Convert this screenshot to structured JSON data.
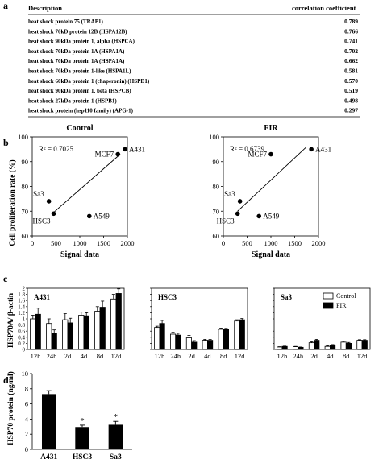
{
  "panel_labels": {
    "a": "a",
    "b": "b",
    "c": "c",
    "d": "d"
  },
  "table": {
    "header_description": "Description",
    "header_coefficient": "correlation coefficient",
    "rows": [
      {
        "desc": "heat shock protein 75 (TRAP1)",
        "value": "0.789"
      },
      {
        "desc": "heat shock 70kD protein 12B (HSPA12B)",
        "value": "0.766"
      },
      {
        "desc": "heat shock 90kDa protein 1, alpha (HSPCA)",
        "value": "0.741"
      },
      {
        "desc": "heat shock 70kDa protein 1A (HSPA1A)",
        "value": "0.702"
      },
      {
        "desc": "heat shock 70kDa protein 1A (HSPA1A)",
        "value": "0.662"
      },
      {
        "desc": "heat shock 70kDa protein 1-like (HSPA1L)",
        "value": "0.581"
      },
      {
        "desc": "heat shock 60kDa protein 1 (chaperonin) (HSPD1)",
        "value": "0.570"
      },
      {
        "desc": "heat shock 90kDa protein 1, beta (HSPCB)",
        "value": "0.519"
      },
      {
        "desc": "heat shock 27kDa protein 1 (HSPB1)",
        "value": "0.498"
      },
      {
        "desc": "heat shock protein (hsp110 family) (APG-1)",
        "value": "0.297"
      }
    ]
  },
  "chart_data": [
    {
      "type": "scatter",
      "title": "Control",
      "xlabel": "Signal data",
      "ylabel": "Cell proliferation rate (%)",
      "xlim": [
        0,
        2000
      ],
      "ylim": [
        60,
        100
      ],
      "xticks": [
        "0",
        "500",
        "1000",
        "1500",
        "2000"
      ],
      "yticks": [
        "60",
        "70",
        "80",
        "90",
        "100"
      ],
      "annotation": "R² = 0.7025",
      "trendline": [
        [
          420,
          69
        ],
        [
          1850,
          93
        ]
      ],
      "points": [
        {
          "label": "A431",
          "x": 1950,
          "y": 95
        },
        {
          "label": "MCF7",
          "x": 1800,
          "y": 93
        },
        {
          "label": "Sa3",
          "x": 350,
          "y": 74
        },
        {
          "label": "HSC3",
          "x": 450,
          "y": 69
        },
        {
          "label": "A549",
          "x": 1200,
          "y": 68
        }
      ]
    },
    {
      "type": "scatter",
      "title": "FIR",
      "xlabel": "Signal data",
      "ylabel": "",
      "xlim": [
        0,
        2000
      ],
      "ylim": [
        60,
        100
      ],
      "xticks": [
        "0",
        "500",
        "1000",
        "1500",
        "2000"
      ],
      "yticks": [
        "60",
        "70",
        "80",
        "90",
        "100"
      ],
      "annotation": "R² = 0.6739",
      "trendline": [
        [
          300,
          70
        ],
        [
          1750,
          96
        ]
      ],
      "points": [
        {
          "label": "A431",
          "x": 1850,
          "y": 95
        },
        {
          "label": "MCF7",
          "x": 1000,
          "y": 93
        },
        {
          "label": "Sa3",
          "x": 350,
          "y": 74
        },
        {
          "label": "HSC3",
          "x": 300,
          "y": 69
        },
        {
          "label": "A549",
          "x": 750,
          "y": 68
        }
      ]
    },
    {
      "type": "bar",
      "title": "A431",
      "ylabel": "HSP70A/ β-actin",
      "ylim": [
        0,
        2
      ],
      "yticks": [
        "0",
        "0.2",
        "0.4",
        "0.6",
        "0.8",
        "1",
        "1.2",
        "1.4",
        "1.6",
        "1.8",
        "2"
      ],
      "categories": [
        "12h",
        "24h",
        "2d",
        "4d",
        "8d",
        "12d"
      ],
      "series": [
        {
          "name": "Control",
          "values": [
            1.0,
            0.85,
            0.97,
            1.12,
            1.25,
            1.65
          ],
          "errors": [
            0.12,
            0.15,
            0.2,
            0.1,
            0.15,
            0.15
          ]
        },
        {
          "name": "FIR",
          "values": [
            1.15,
            0.52,
            0.87,
            1.1,
            1.38,
            1.83
          ],
          "errors": [
            0.2,
            0.12,
            0.15,
            0.1,
            0.2,
            0.15
          ]
        }
      ]
    },
    {
      "type": "bar",
      "title": "HSC3",
      "ylim": [
        0,
        2
      ],
      "yticks": [
        "0",
        "0.2",
        "0.4",
        "0.6",
        "0.8",
        "1",
        "1.2",
        "1.4",
        "1.6",
        "1.8",
        "2"
      ],
      "categories": [
        "12h",
        "24h",
        "2d",
        "4d",
        "8d",
        "12d"
      ],
      "series": [
        {
          "name": "Control",
          "values": [
            0.72,
            0.5,
            0.38,
            0.3,
            0.66,
            0.93
          ],
          "errors": [
            0.04,
            0.06,
            0.08,
            0.03,
            0.04,
            0.04
          ]
        },
        {
          "name": "FIR",
          "values": [
            0.85,
            0.47,
            0.24,
            0.3,
            0.65,
            0.97
          ],
          "errors": [
            0.1,
            0.06,
            0.05,
            0.03,
            0.04,
            0.04
          ]
        }
      ]
    },
    {
      "type": "bar",
      "title": "Sa3",
      "ylim": [
        0,
        2
      ],
      "yticks": [
        "0",
        "0.2",
        "0.4",
        "0.6",
        "0.8",
        "1",
        "1.2",
        "1.4",
        "1.6",
        "1.8",
        "2"
      ],
      "categories": [
        "12h",
        "24h",
        "2d",
        "4d",
        "8d",
        "12d"
      ],
      "legend": [
        "Control",
        "FIR"
      ],
      "series": [
        {
          "name": "Control",
          "values": [
            0.08,
            0.09,
            0.22,
            0.1,
            0.24,
            0.3
          ],
          "errors": [
            0.01,
            0.01,
            0.03,
            0.02,
            0.03,
            0.02
          ]
        },
        {
          "name": "FIR",
          "values": [
            0.1,
            0.07,
            0.3,
            0.14,
            0.2,
            0.3
          ],
          "errors": [
            0.01,
            0.01,
            0.03,
            0.02,
            0.03,
            0.02
          ]
        }
      ]
    },
    {
      "type": "bar",
      "ylabel": "HSP70 protein (ng/ml)",
      "ylim": [
        0,
        10
      ],
      "yticks": [
        "0",
        "2",
        "4",
        "6",
        "8",
        "10"
      ],
      "categories": [
        "A431",
        "HSC3",
        "Sa3"
      ],
      "values": [
        7.3,
        2.95,
        3.25
      ],
      "errors": [
        0.45,
        0.25,
        0.45
      ],
      "significance": [
        "",
        "*",
        "*"
      ]
    }
  ]
}
